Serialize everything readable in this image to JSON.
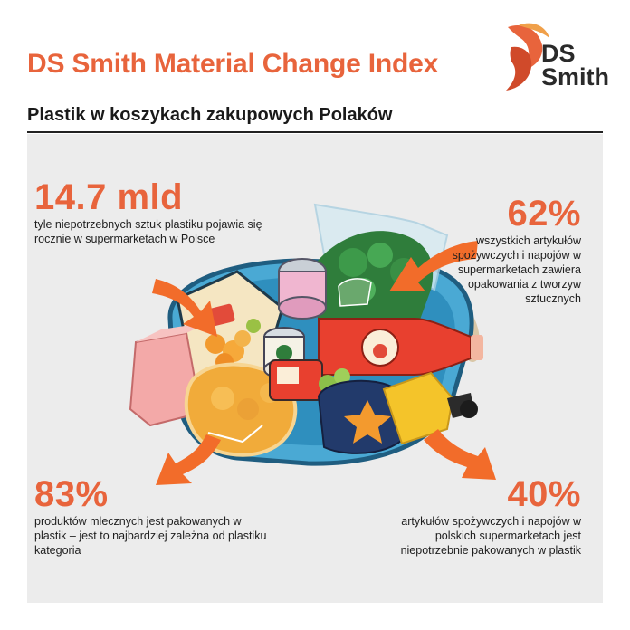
{
  "header": {
    "title": "DS Smith Material Change Index",
    "subtitle": "Plastik w koszykach zakupowych Polaków"
  },
  "brand": {
    "logo_line1": "DS",
    "logo_line2": "Smith",
    "accent_color": "#e8643c"
  },
  "stats": [
    {
      "value": "14.7 mld",
      "desc": "tyle niepotrzebnych sztuk plastiku pojawia się  rocznie w supermarketach w Polsce"
    },
    {
      "value": "62%",
      "desc": "wszystkich artykułów spożywczych i napojów w supermarketach zawiera opakowania z tworzyw sztucznych"
    },
    {
      "value": "83%",
      "desc": "produktów mlecznych jest pakowanych w plastik – jest to najbardziej zależna od plastiku kategoria"
    },
    {
      "value": "40%",
      "desc": "artykułów spożywczych i napojów w polskich supermarketach jest niepotrzebnie pakowanych w plastik"
    }
  ],
  "illustration": {
    "icons": [
      "shopping-basket-icon",
      "arrow-icon"
    ]
  }
}
